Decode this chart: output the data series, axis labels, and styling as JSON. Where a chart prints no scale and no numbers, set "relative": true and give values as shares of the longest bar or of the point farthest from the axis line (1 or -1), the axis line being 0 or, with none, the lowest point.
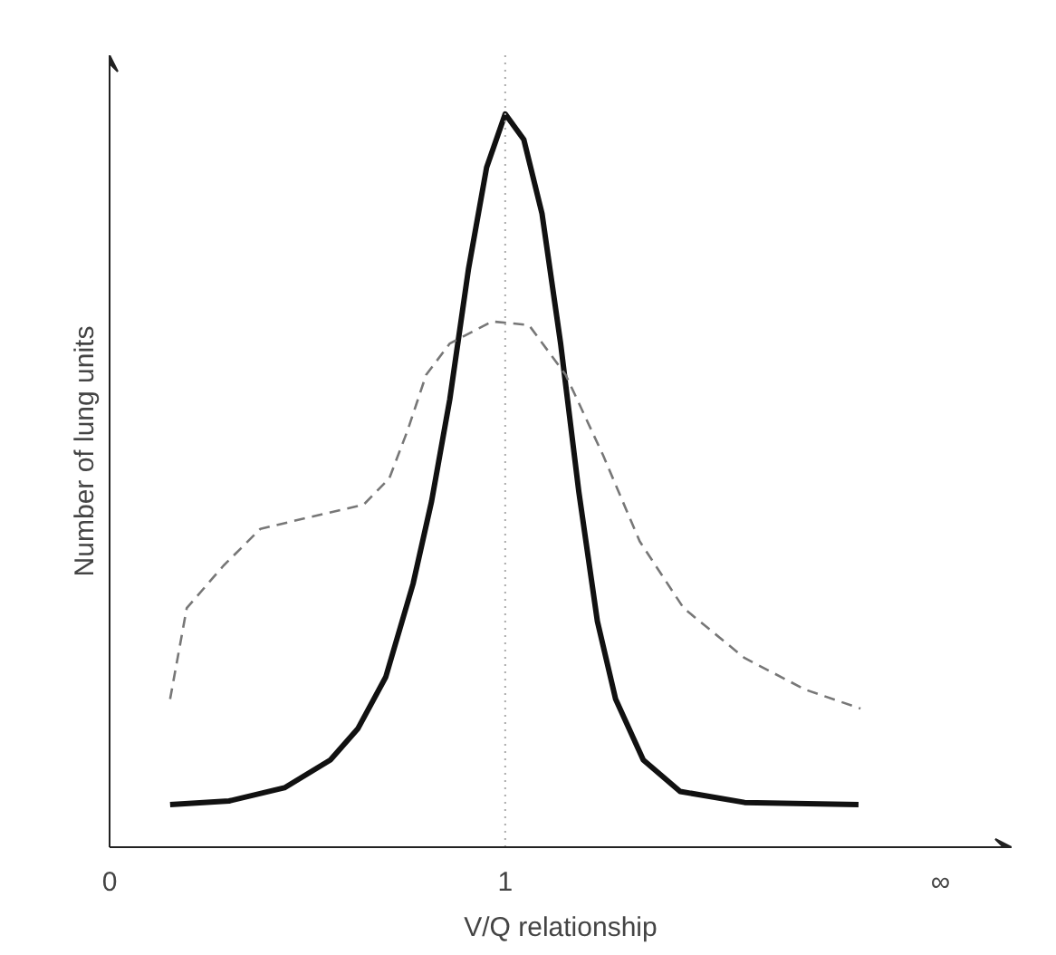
{
  "chart_data": {
    "type": "line",
    "relative": true,
    "xlabel": "V/Q relationship",
    "ylabel": "Number of lung units",
    "xlim": [
      0,
      2.28
    ],
    "xticks": [
      0,
      1,
      {
        "value": 2.1,
        "label": "∞"
      }
    ],
    "grid": false,
    "marker": "none",
    "ref_lines": [
      {
        "axis": "x",
        "value": 1,
        "label": null,
        "color": "#aaaaaa",
        "line_style": "dotted"
      }
    ],
    "series": [
      {
        "color": "#111111",
        "line_style": "solid",
        "x": [
          0.153,
          0.302,
          0.442,
          0.558,
          0.628,
          0.698,
          0.767,
          0.814,
          0.86,
          0.907,
          0.953,
          1.0,
          1.047,
          1.093,
          1.14,
          1.186,
          1.233,
          1.279,
          1.349,
          1.442,
          1.605,
          1.893
        ],
        "values": [
          0.058,
          0.063,
          0.081,
          0.119,
          0.162,
          0.232,
          0.359,
          0.472,
          0.611,
          0.788,
          0.927,
          1,
          0.965,
          0.864,
          0.687,
          0.485,
          0.308,
          0.202,
          0.119,
          0.076,
          0.061,
          0.058
        ]
      },
      {
        "color": "#777777",
        "line_style": "dashed",
        "x": [
          0.153,
          0.195,
          0.288,
          0.381,
          0.521,
          0.642,
          0.707,
          0.753,
          0.8,
          0.86,
          0.967,
          1.06,
          1.153,
          1.247,
          1.34,
          1.451,
          1.605,
          1.758,
          1.898
        ],
        "values": [
          0.202,
          0.326,
          0.384,
          0.434,
          0.452,
          0.467,
          0.503,
          0.568,
          0.644,
          0.687,
          0.717,
          0.712,
          0.644,
          0.535,
          0.417,
          0.326,
          0.258,
          0.215,
          0.189
        ]
      }
    ]
  }
}
